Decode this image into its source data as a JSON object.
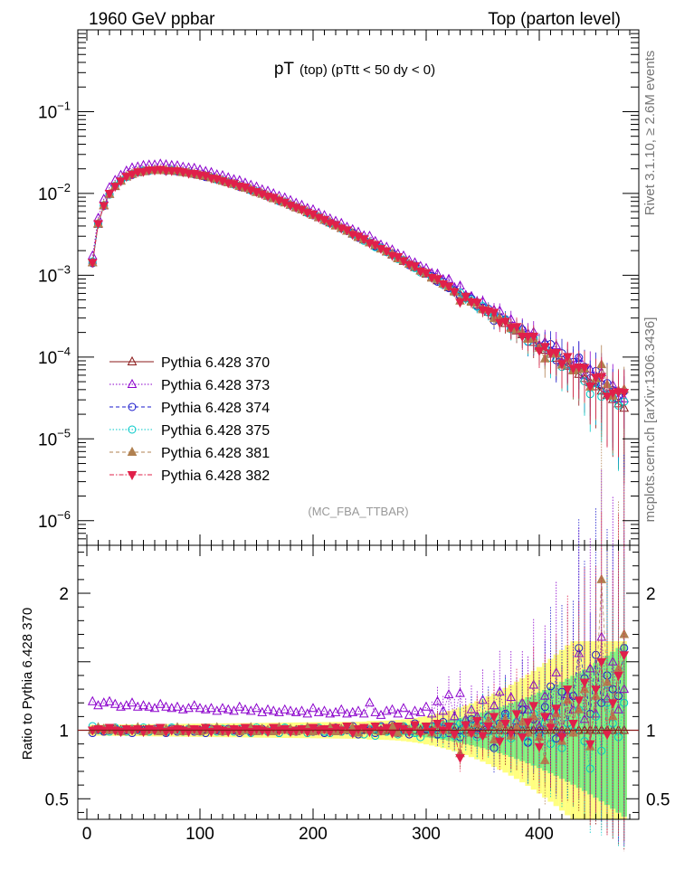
{
  "header": {
    "left": "1960 GeV ppbar",
    "right": "Top (parton level)"
  },
  "plot_title": {
    "main": "pT",
    "sub": "(top) (pTtt < 50 dy < 0)"
  },
  "side_labels": {
    "rivet": "Rivet 3.1.10, ≥ 2.6M events",
    "mcplots": "mcplots.cern.ch [arXiv:1306.3436]"
  },
  "analysis_tag": "(MC_FBA_TTBAR)",
  "ratio_ylabel": "Ratio to Pythia 6.428 370",
  "colors": {
    "s370": "#8b1a1a",
    "s373": "#8b00cc",
    "s374": "#1a1acc",
    "s375": "#00c8c8",
    "s381": "#b08050",
    "s382": "#e0204a",
    "band_yellow": "#ffff80",
    "band_green": "#80f080"
  },
  "chart_data": {
    "type": "scatter",
    "x": [
      5,
      10,
      15,
      20,
      25,
      30,
      35,
      40,
      45,
      50,
      55,
      60,
      65,
      70,
      75,
      80,
      85,
      90,
      95,
      100,
      105,
      110,
      115,
      120,
      125,
      130,
      135,
      140,
      145,
      150,
      155,
      160,
      165,
      170,
      175,
      180,
      185,
      190,
      195,
      200,
      205,
      210,
      215,
      220,
      225,
      230,
      235,
      240,
      245,
      250,
      255,
      260,
      265,
      270,
      275,
      280,
      285,
      290,
      295,
      300,
      305,
      310,
      315,
      320,
      325,
      330,
      335,
      340,
      345,
      350,
      355,
      360,
      365,
      370,
      375,
      380,
      385,
      390,
      395,
      400,
      405,
      410,
      415,
      420,
      425,
      430,
      435,
      440,
      445,
      450,
      455,
      460,
      465,
      470,
      475
    ],
    "main_panel": {
      "yscale": "log",
      "ylim": [
        5e-07,
        1
      ],
      "ytick_labels": [
        "10^-6",
        "10^-5",
        "10^-4",
        "10^-3",
        "10^-2",
        "10^-1"
      ],
      "reference_values": [
        0.00143,
        0.00423,
        0.00711,
        0.00979,
        0.0122,
        0.0143,
        0.016,
        0.0172,
        0.0181,
        0.0187,
        0.0191,
        0.0193,
        0.0193,
        0.0192,
        0.019,
        0.0187,
        0.0183,
        0.0178,
        0.0173,
        0.0168,
        0.0162,
        0.0156,
        0.0149,
        0.0143,
        0.0136,
        0.013,
        0.0123,
        0.0117,
        0.0111,
        0.0104,
        0.00986,
        0.0093,
        0.00875,
        0.00822,
        0.00771,
        0.00722,
        0.00675,
        0.00631,
        0.00588,
        0.00547,
        0.00509,
        0.00473,
        0.00439,
        0.00406,
        0.00376,
        0.00347,
        0.00321,
        0.00296,
        0.00272,
        0.00251,
        0.0023,
        0.00212,
        0.00194,
        0.00178,
        0.00163,
        0.00149,
        0.00137,
        0.00125,
        0.00114,
        0.00104,
        0.000946,
        0.000861,
        0.000782,
        0.000711,
        0.000645,
        0.000585,
        0.00053,
        0.00048,
        0.000434,
        0.000392,
        0.000354,
        0.000319,
        0.000287,
        0.000259,
        0.000233,
        0.00021,
        0.000188,
        0.000169,
        0.000152,
        0.000136,
        0.000122,
        0.000109,
        9.75e-05,
        8.71e-05,
        7.78e-05,
        6.94e-05,
        6.18e-05,
        5.5e-05,
        4.9e-05,
        4.35e-05,
        3.86e-05,
        3.43e-05,
        3.04e-05,
        2.69e-05,
        2.38e-05
      ]
    },
    "ratio_panel": {
      "ylim": [
        0.35,
        2.35
      ],
      "yticks": [
        0.5,
        1,
        2
      ],
      "ylabel": "Ratio to Pythia 6.428 370"
    },
    "xlim": [
      -8,
      488
    ],
    "xticks": [
      0,
      100,
      200,
      300,
      400
    ],
    "series": [
      {
        "name": "Pythia 6.428 370",
        "marker": "open-triangle-up",
        "line": "solid",
        "ratio": [
          1,
          1,
          1,
          1,
          1,
          1,
          1,
          1,
          1,
          1,
          1,
          1,
          1,
          1,
          1,
          1,
          1,
          1,
          1,
          1,
          1,
          1,
          1,
          1,
          1,
          1,
          1,
          1,
          1,
          1,
          1,
          1,
          1,
          1,
          1,
          1,
          1,
          1,
          1,
          1,
          1,
          1,
          1,
          1,
          1,
          1,
          1,
          1,
          1,
          1,
          1,
          1,
          1,
          1,
          1,
          1,
          1,
          1,
          1,
          1,
          1,
          1,
          1,
          1,
          1,
          1,
          1,
          1,
          1,
          1,
          1,
          1,
          1,
          1,
          1,
          1,
          1,
          1,
          1,
          1,
          1,
          1,
          1,
          1,
          1,
          1,
          1,
          1,
          1,
          1,
          1,
          1,
          1,
          1,
          1
        ]
      },
      {
        "name": "Pythia 6.428 373",
        "marker": "open-triangle-up",
        "line": "dotted",
        "ratio": [
          1.21,
          1.18,
          1.2,
          1.21,
          1.19,
          1.17,
          1.18,
          1.2,
          1.17,
          1.18,
          1.17,
          1.16,
          1.19,
          1.17,
          1.16,
          1.17,
          1.15,
          1.16,
          1.18,
          1.16,
          1.15,
          1.16,
          1.14,
          1.16,
          1.15,
          1.14,
          1.17,
          1.15,
          1.14,
          1.16,
          1.13,
          1.15,
          1.14,
          1.13,
          1.15,
          1.14,
          1.13,
          1.14,
          1.12,
          1.16,
          1.13,
          1.14,
          1.12,
          1.13,
          1.15,
          1.12,
          1.13,
          1.14,
          1.12,
          1.2,
          1.13,
          1.11,
          1.14,
          1.15,
          1.12,
          1.16,
          1.11,
          1.14,
          1.13,
          1.17,
          1.12,
          1.21,
          1.14,
          1.26,
          1.1,
          1.27,
          1.08,
          1.15,
          1.1,
          1.22,
          1.05,
          1.18,
          1.28,
          1.11,
          1.24,
          1.07,
          1.2,
          1.15,
          1.33,
          1.03,
          1.25,
          1.1,
          1.42,
          0.98,
          1.26,
          1.15,
          1.56,
          1.08,
          1.45,
          1.12,
          1.68,
          1.23,
          1.5,
          1.15,
          1.3
        ]
      },
      {
        "name": "Pythia 6.428 374",
        "marker": "open-circle",
        "line": "dashed",
        "ratio": [
          0.98,
          1.01,
          0.99,
          1,
          1.01,
          0.99,
          1,
          0.98,
          1.01,
          1,
          0.99,
          1.01,
          1,
          0.98,
          1.01,
          0.99,
          1,
          1.01,
          0.99,
          1,
          0.98,
          1.01,
          1,
          0.99,
          1.01,
          1,
          0.98,
          1.01,
          0.99,
          1,
          1.01,
          0.99,
          1,
          0.98,
          1.01,
          1,
          0.99,
          1.01,
          1,
          0.99,
          1.01,
          0.98,
          1,
          1.02,
          0.99,
          1,
          1.03,
          0.97,
          1.01,
          1,
          0.98,
          1.03,
          0.99,
          1.04,
          0.98,
          1.02,
          0.97,
          1.05,
          0.99,
          1.01,
          1.03,
          0.97,
          1.06,
          0.98,
          1.02,
          0.95,
          1.04,
          1.08,
          0.97,
          1.03,
          1.1,
          0.87,
          1.05,
          1.12,
          0.96,
          1.02,
          1.15,
          0.91,
          1.08,
          0.98,
          1.17,
          1.32,
          0.94,
          1.28,
          1.05,
          1.25,
          1.6,
          1.38,
          1.12,
          1.55,
          1.2,
          1.4,
          1.3,
          1.25,
          1.6
        ]
      },
      {
        "name": "Pythia 6.428 375",
        "marker": "open-circle",
        "line": "dotted",
        "ratio": [
          1.03,
          1,
          1.01,
          0.99,
          1.02,
          1,
          0.99,
          1.01,
          1,
          1.02,
          0.99,
          1,
          1.01,
          0.99,
          1.02,
          1,
          0.99,
          1.01,
          1,
          0.99,
          1.02,
          1,
          0.99,
          1.01,
          1,
          0.99,
          1.01,
          1,
          0.98,
          1.02,
          1,
          0.99,
          1.01,
          0.98,
          1.02,
          0.99,
          1,
          1.01,
          0.98,
          1,
          1.02,
          0.99,
          0.98,
          1.01,
          0.99,
          1.02,
          0.98,
          1,
          0.97,
          1.01,
          0.96,
          1.02,
          0.99,
          1,
          0.97,
          1.03,
          0.99,
          0.98,
          0.95,
          1.02,
          0.98,
          1.04,
          0.97,
          1.02,
          0.96,
          1.05,
          0.98,
          1.03,
          0.95,
          1.07,
          0.99,
          1.04,
          0.97,
          1.1,
          0.94,
          1.06,
          1,
          0.92,
          1.12,
          0.96,
          1.05,
          0.9,
          1.13,
          0.87,
          1.05,
          0.99,
          1.15,
          0.92,
          0.72,
          1.1,
          0.85,
          1.2,
          1.05,
          0.95,
          1.2
        ]
      },
      {
        "name": "Pythia 6.428 381",
        "marker": "filled-triangle-up",
        "line": "dashed",
        "ratio": [
          1,
          1.02,
          1.01,
          1,
          1.01,
          0.99,
          1.01,
          1,
          1.02,
          0.99,
          1.01,
          1,
          0.99,
          1.01,
          1,
          1.02,
          0.99,
          1.01,
          1,
          0.99,
          1.01,
          1,
          1.02,
          0.99,
          1,
          1.01,
          0.99,
          1,
          1.02,
          0.99,
          1.01,
          1,
          0.99,
          1.02,
          1,
          1.01,
          0.99,
          1,
          1.02,
          0.99,
          1.01,
          1,
          1.02,
          0.99,
          1.01,
          1,
          1.02,
          0.98,
          1.01,
          1,
          1.02,
          0.99,
          1.01,
          1.03,
          0.98,
          1.02,
          1,
          1.03,
          0.99,
          1.02,
          0.98,
          1.04,
          1,
          1.02,
          0.97,
          0.83,
          1.03,
          0.98,
          1.05,
          0.97,
          1.07,
          0.93,
          1.04,
          1.08,
          0.96,
          1.02,
          1.06,
          0.98,
          1.1,
          0.95,
          0.78,
          1.05,
          1.12,
          0.92,
          1.22,
          0.98,
          1.15,
          1.3,
          0.88,
          1.25,
          2.1,
          1.35,
          1.1,
          1.45,
          1.7
        ]
      },
      {
        "name": "Pythia 6.428 382",
        "marker": "filled-triangle-down",
        "line": "dash-dot",
        "ratio": [
          1,
          1.01,
          1,
          1.02,
          1,
          0.99,
          1.01,
          1,
          1.01,
          0.99,
          1.01,
          1,
          1.02,
          0.99,
          1,
          1.01,
          1,
          0.99,
          1.01,
          1,
          1.02,
          0.99,
          1.01,
          1,
          0.99,
          1.01,
          1,
          1.02,
          0.99,
          1.01,
          1,
          0.99,
          1.02,
          1,
          1.01,
          0.99,
          1,
          1.01,
          0.99,
          1.02,
          1,
          1.01,
          0.99,
          1.02,
          1,
          1.03,
          0.98,
          1.01,
          1.02,
          0.99,
          1.03,
          1,
          1.02,
          0.98,
          1.03,
          1.01,
          0.99,
          1.04,
          0.98,
          1.03,
          0.99,
          1.05,
          1,
          1.03,
          0.97,
          0.8,
          1.04,
          0.98,
          1.07,
          0.96,
          1.03,
          1.1,
          0.92,
          1.05,
          0.98,
          1.12,
          0.95,
          1.06,
          1.18,
          0.88,
          1.1,
          1.02,
          1.16,
          0.95,
          1.3,
          1.05,
          1.22,
          1.35,
          0.9,
          1.3,
          1.5,
          0.97,
          1.2,
          1.4,
          1.55
        ]
      }
    ]
  }
}
